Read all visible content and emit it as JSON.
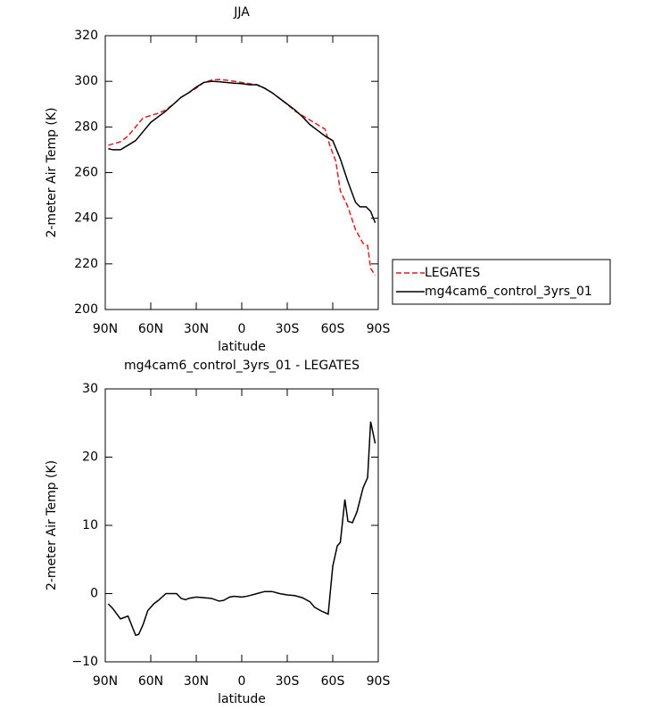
{
  "chart_data": [
    {
      "type": "line",
      "title": "JJA",
      "x_label": "latitude",
      "y_label": "2-meter Air Temp (K)",
      "xlim": [
        90,
        -90
      ],
      "xticks": [
        {
          "value": 90,
          "label": "90N"
        },
        {
          "value": 60,
          "label": "60N"
        },
        {
          "value": 30,
          "label": "30N"
        },
        0,
        {
          "value": -30,
          "label": "30S"
        },
        {
          "value": -60,
          "label": "60S"
        },
        {
          "value": -90,
          "label": "90S"
        }
      ],
      "ylim": [
        200,
        320
      ],
      "yticks": [
        200,
        220,
        240,
        260,
        280,
        300,
        320
      ],
      "legend": "right",
      "series": [
        {
          "name": "LEGATES",
          "color": "#e41a1c",
          "dash": true,
          "x": [
            88,
            80,
            75,
            70,
            65,
            60,
            55,
            50,
            45,
            40,
            35,
            30,
            25,
            20,
            15,
            10,
            5,
            0,
            -5,
            -10,
            -15,
            -20,
            -25,
            -30,
            -35,
            -40,
            -45,
            -50,
            -55,
            -58,
            -62,
            -65,
            -70,
            -75,
            -80,
            -83,
            -85,
            -88
          ],
          "values": [
            272,
            273.5,
            276,
            280,
            284,
            285,
            286,
            287.5,
            290,
            293,
            295,
            297,
            299.5,
            300.5,
            300.8,
            300.5,
            300,
            299.5,
            299,
            298.5,
            297,
            295,
            292.5,
            290,
            287,
            285,
            283,
            281,
            279,
            272,
            265,
            252,
            245,
            235,
            229,
            228,
            218,
            215
          ]
        },
        {
          "name": "mg4cam6_control_3yrs_01",
          "color": "#000000",
          "dash": false,
          "x": [
            88,
            85,
            80,
            75,
            70,
            65,
            60,
            55,
            50,
            45,
            40,
            35,
            30,
            25,
            20,
            15,
            10,
            5,
            0,
            -5,
            -10,
            -15,
            -20,
            -25,
            -30,
            -35,
            -40,
            -45,
            -50,
            -55,
            -60,
            -65,
            -70,
            -75,
            -78,
            -82,
            -85,
            -88
          ],
          "values": [
            270.5,
            270,
            270,
            272,
            274,
            278,
            282,
            284.5,
            287,
            290,
            293,
            295,
            297.5,
            299.5,
            300,
            299.8,
            299.5,
            299.2,
            299,
            298.5,
            298.5,
            297,
            295,
            292.5,
            290,
            287.5,
            284.5,
            281,
            278.5,
            276,
            274,
            266,
            256,
            247,
            245,
            245,
            243,
            238
          ]
        }
      ]
    },
    {
      "type": "line",
      "title": "mg4cam6_control_3yrs_01 - LEGATES",
      "x_label": "latitude",
      "y_label": "2-meter Air Temp (K)",
      "xlim": [
        90,
        -90
      ],
      "xticks": [
        {
          "value": 90,
          "label": "90N"
        },
        {
          "value": 60,
          "label": "60N"
        },
        {
          "value": 30,
          "label": "30N"
        },
        0,
        {
          "value": -30,
          "label": "30S"
        },
        {
          "value": -60,
          "label": "60S"
        },
        {
          "value": -90,
          "label": "90S"
        }
      ],
      "ylim": [
        -10,
        30
      ],
      "yticks": [
        {
          "value": -10,
          "label": "−10"
        },
        0,
        10,
        20,
        30
      ],
      "series": [
        {
          "color": "#000000",
          "dash": false,
          "x": [
            88,
            85,
            80,
            75,
            70,
            68,
            65,
            62,
            58,
            55,
            50,
            45,
            43,
            40,
            37,
            35,
            30,
            25,
            20,
            15,
            12,
            8,
            5,
            0,
            -3,
            -5,
            -10,
            -15,
            -20,
            -25,
            -30,
            -35,
            -40,
            -45,
            -48,
            -52,
            -55,
            -57,
            -60,
            -63,
            -65,
            -68,
            -70,
            -73,
            -76,
            -80,
            -83,
            -85,
            -88
          ],
          "values": [
            -1.5,
            -2.2,
            -3.7,
            -3.3,
            -6.1,
            -6,
            -4.5,
            -2.5,
            -1.5,
            -1,
            0,
            0,
            0,
            -0.7,
            -0.9,
            -0.7,
            -0.5,
            -0.6,
            -0.7,
            -1.1,
            -1,
            -0.5,
            -0.4,
            -0.5,
            -0.4,
            -0.3,
            0,
            0.3,
            0.3,
            0,
            -0.2,
            -0.3,
            -0.6,
            -1.2,
            -2,
            -2.5,
            -2.8,
            -3,
            4,
            7,
            7.5,
            13.8,
            10.6,
            10.4,
            12,
            15.5,
            17,
            25.2,
            22
          ]
        }
      ]
    }
  ]
}
